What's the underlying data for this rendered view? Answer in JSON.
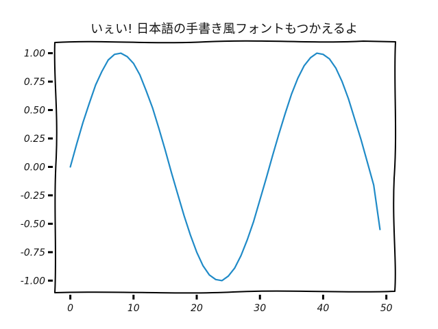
{
  "chart_data": {
    "type": "line",
    "title": "いぇい! 日本語の手書き風フォントもつかえるよ",
    "xlabel": "",
    "ylabel": "",
    "xlim": [
      -2.45,
      51.45
    ],
    "ylim": [
      -1.1,
      1.1
    ],
    "x_ticks": [
      0,
      10,
      20,
      30,
      40,
      50
    ],
    "x_tick_labels": [
      "0",
      "10",
      "20",
      "30",
      "40",
      "50"
    ],
    "y_ticks": [
      1.0,
      0.75,
      0.5,
      0.25,
      0.0,
      -0.25,
      -0.5,
      -0.75,
      -1.0
    ],
    "y_tick_labels": [
      "1.00",
      "0.75",
      "0.50",
      "0.25",
      "0.00",
      "-0.25",
      "-0.50",
      "-0.75",
      "-1.00"
    ],
    "grid": false,
    "colors": {
      "line": "#1f8ac7",
      "frame": "#000000"
    },
    "series": [
      {
        "x": [
          0,
          1,
          2,
          3,
          4,
          5,
          6,
          7,
          8,
          9,
          10,
          11,
          12,
          13,
          14,
          15,
          16,
          17,
          18,
          19,
          20,
          21,
          22,
          23,
          24,
          25,
          26,
          27,
          28,
          29,
          30,
          31,
          32,
          33,
          34,
          35,
          36,
          37,
          38,
          39,
          40,
          41,
          42,
          43,
          44,
          45,
          46,
          47,
          48,
          49
        ],
        "values": [
          0.0,
          0.2,
          0.39,
          0.56,
          0.72,
          0.84,
          0.94,
          0.99,
          1.0,
          0.97,
          0.91,
          0.81,
          0.67,
          0.52,
          0.34,
          0.15,
          -0.05,
          -0.24,
          -0.43,
          -0.6,
          -0.75,
          -0.87,
          -0.95,
          -0.99,
          -1.0,
          -0.96,
          -0.89,
          -0.78,
          -0.64,
          -0.48,
          -0.29,
          -0.1,
          0.1,
          0.29,
          0.47,
          0.64,
          0.78,
          0.89,
          0.96,
          1.0,
          0.99,
          0.95,
          0.87,
          0.75,
          0.6,
          0.42,
          0.24,
          0.04,
          -0.16,
          -0.55
        ]
      }
    ]
  }
}
